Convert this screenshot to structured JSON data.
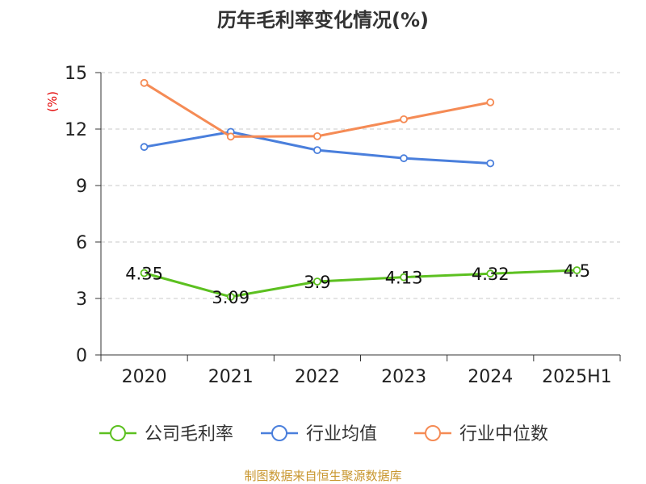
{
  "chart_data": {
    "type": "line",
    "title": "历年毛利率变化情况(%)",
    "ylabel": "(%)",
    "categories": [
      "2020",
      "2021",
      "2022",
      "2023",
      "2024",
      "2025H1"
    ],
    "ylim": [
      0,
      15
    ],
    "yticks": [
      "0",
      "3",
      "6",
      "9",
      "12",
      "15"
    ],
    "grid": true,
    "legend_position": "bottom",
    "series": [
      {
        "name": "公司毛利率",
        "color": "#5cc020",
        "values": [
          4.35,
          3.09,
          3.9,
          4.13,
          4.32,
          4.5
        ],
        "labels": [
          "4.35",
          "3.09",
          "3.9",
          "4.13",
          "4.32",
          "4.5"
        ]
      },
      {
        "name": "行业均值",
        "color": "#4a7fdc",
        "values": [
          11.05,
          11.85,
          10.88,
          10.45,
          10.18,
          null
        ]
      },
      {
        "name": "行业中位数",
        "color": "#f58b55",
        "values": [
          14.45,
          11.6,
          11.62,
          12.52,
          13.42,
          null
        ]
      }
    ],
    "source": "制图数据来自恒生聚源数据库"
  }
}
